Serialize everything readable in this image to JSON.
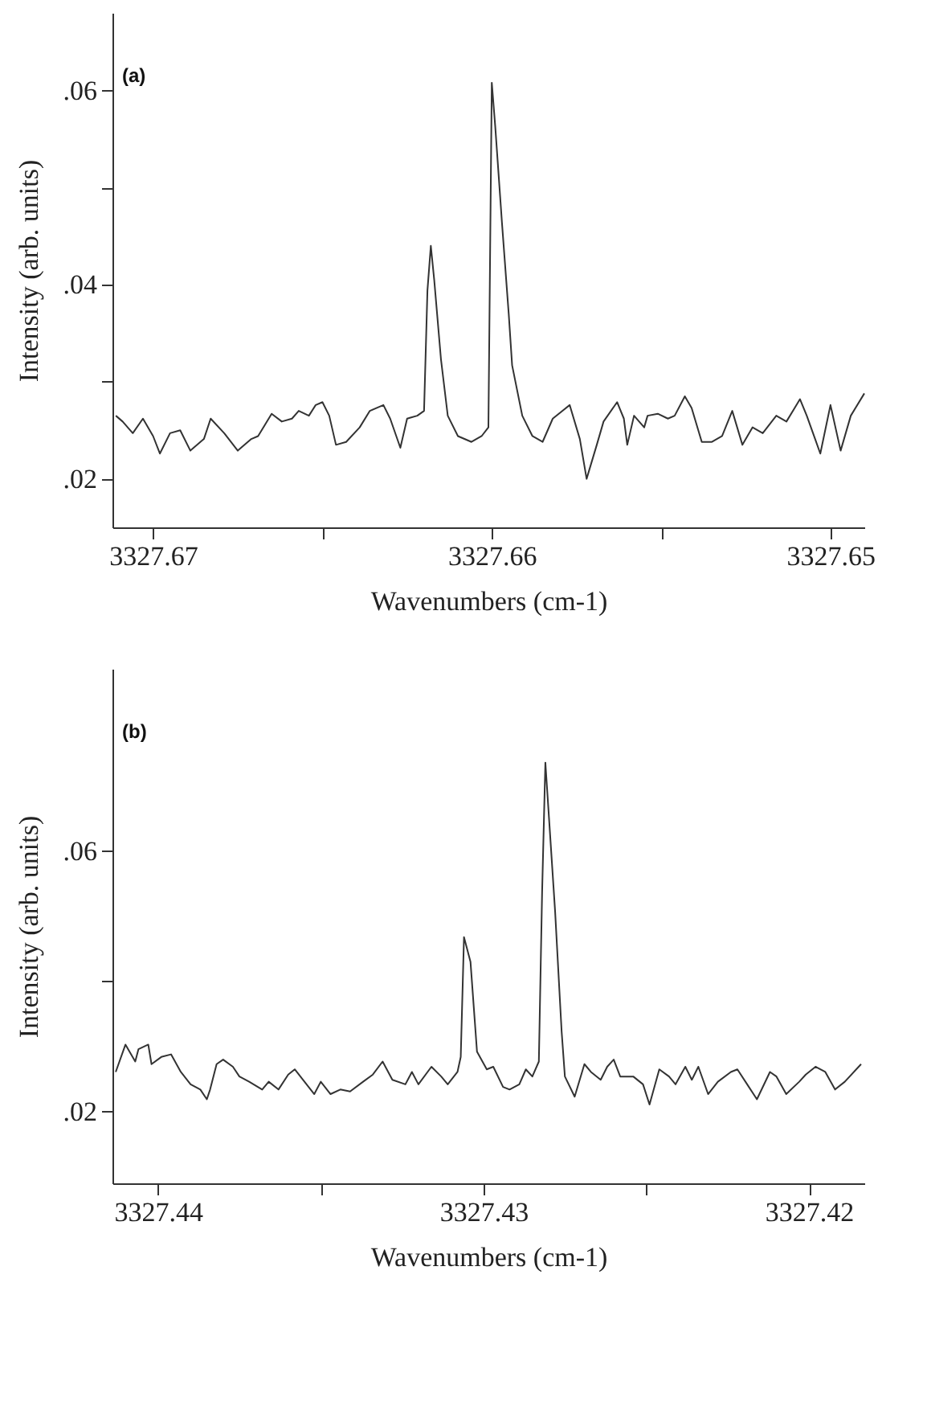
{
  "chart_data": [
    {
      "type": "line",
      "xlabel": "Wavenumbers (cm-1)",
      "ylabel": "Intensity (arb. units)",
      "annotations": [
        "(a)"
      ],
      "grid": false,
      "legend": false,
      "marker": "none",
      "line_style": "solid",
      "xlim": [
        3327.6712,
        3327.649
      ],
      "xticks": [
        3327.67,
        {
          "value": 3327.665,
          "label": null
        },
        3327.66,
        {
          "value": 3327.655,
          "label": null
        },
        3327.65
      ],
      "ylim": [
        0.015,
        0.068
      ],
      "yticks": [
        {
          "value": 0.02,
          "label": ".02"
        },
        {
          "value": 0.03,
          "label": null
        },
        {
          "value": 0.04,
          "label": ".04"
        },
        {
          "value": 0.05,
          "label": null
        },
        {
          "value": 0.06,
          "label": ".06"
        }
      ],
      "series": [
        {
          "color": "#333333",
          "x": [
            3327.6711,
            3327.6709,
            3327.6706,
            3327.6703,
            3327.67,
            3327.6698,
            3327.6695,
            3327.6692,
            3327.6689,
            3327.6685,
            3327.6683,
            3327.6679,
            3327.6675,
            3327.6671,
            3327.6669,
            3327.6665,
            3327.6662,
            3327.6659,
            3327.6657,
            3327.6654,
            3327.6652,
            3327.665,
            3327.6648,
            3327.6646,
            3327.6643,
            3327.6639,
            3327.6636,
            3327.6632,
            3327.663,
            3327.6627,
            3327.6625,
            3327.6622,
            3327.662,
            3327.6619,
            3327.6618,
            3327.6617,
            3327.6615,
            3327.6613,
            3327.661,
            3327.6606,
            3327.6603,
            3327.6601,
            3327.66,
            3327.6599,
            3327.6597,
            3327.6595,
            3327.6594,
            3327.6591,
            3327.6588,
            3327.6585,
            3327.6582,
            3327.6577,
            3327.6574,
            3327.6572,
            3327.6569,
            3327.6567,
            3327.6563,
            3327.6561,
            3327.656,
            3327.6558,
            3327.6555,
            3327.6554,
            3327.6551,
            3327.6548,
            3327.6546,
            3327.6543,
            3327.6541,
            3327.6538,
            3327.6535,
            3327.6532,
            3327.6529,
            3327.6526,
            3327.6523,
            3327.652,
            3327.6516,
            3327.6513,
            3327.6509,
            3327.6507,
            3327.6503,
            3327.65,
            3327.6497,
            3327.6494,
            3327.649
          ],
          "values": [
            0.0265,
            0.0259,
            0.0247,
            0.0262,
            0.0244,
            0.0226,
            0.0247,
            0.025,
            0.0229,
            0.0241,
            0.0262,
            0.0247,
            0.0229,
            0.0241,
            0.0244,
            0.0267,
            0.0259,
            0.0262,
            0.027,
            0.0265,
            0.0276,
            0.0279,
            0.0265,
            0.0235,
            0.0238,
            0.0253,
            0.027,
            0.0276,
            0.0262,
            0.0232,
            0.0262,
            0.0265,
            0.027,
            0.0394,
            0.044,
            0.0405,
            0.0323,
            0.0265,
            0.0244,
            0.0238,
            0.0244,
            0.0253,
            0.0608,
            0.0564,
            0.0464,
            0.037,
            0.0317,
            0.0265,
            0.0244,
            0.0238,
            0.0262,
            0.0276,
            0.0241,
            0.02,
            0.0235,
            0.0259,
            0.0279,
            0.0262,
            0.0235,
            0.0265,
            0.0253,
            0.0265,
            0.0267,
            0.0262,
            0.0265,
            0.0285,
            0.0273,
            0.0238,
            0.0238,
            0.0244,
            0.027,
            0.0235,
            0.0253,
            0.0247,
            0.0265,
            0.0259,
            0.0282,
            0.0265,
            0.0226,
            0.0276,
            0.0229,
            0.0265,
            0.0288
          ]
        }
      ]
    },
    {
      "type": "line",
      "xlabel": "Wavenumbers (cm-1)",
      "ylabel": "Intensity (arb. units)",
      "annotations": [
        "(b)"
      ],
      "grid": false,
      "legend": false,
      "marker": "none",
      "line_style": "solid",
      "xlim": [
        3327.4414,
        3327.4183
      ],
      "xticks": [
        3327.44,
        {
          "value": 3327.435,
          "label": null
        },
        3327.43,
        {
          "value": 3327.425,
          "label": null
        },
        3327.42
      ],
      "ylim": [
        0.009,
        0.088
      ],
      "yticks": [
        {
          "value": 0.02,
          "label": ".02"
        },
        {
          "value": 0.04,
          "label": null
        },
        {
          "value": 0.06,
          "label": ".06"
        }
      ],
      "series": [
        {
          "color": "#333333",
          "x": [
            3327.4413,
            3327.441,
            3327.4407,
            3327.4406,
            3327.4403,
            3327.4402,
            3327.4399,
            3327.4396,
            3327.4393,
            3327.439,
            3327.4387,
            3327.4385,
            3327.4384,
            3327.4382,
            3327.438,
            3327.4377,
            3327.4375,
            3327.4372,
            3327.4368,
            3327.4366,
            3327.4363,
            3327.436,
            3327.4358,
            3327.4355,
            3327.4352,
            3327.435,
            3327.4347,
            3327.4344,
            3327.4341,
            3327.4337,
            3327.4334,
            3327.4331,
            3327.4328,
            3327.4324,
            3327.4322,
            3327.432,
            3327.4316,
            3327.4313,
            3327.4311,
            3327.4308,
            3327.4307,
            3327.4306,
            3327.4304,
            3327.4302,
            3327.4299,
            3327.4297,
            3327.4294,
            3327.4292,
            3327.4289,
            3327.4287,
            3327.4285,
            3327.4283,
            3327.4282,
            3327.4281,
            3327.428,
            3327.4278,
            3327.4276,
            3327.4275,
            3327.4272,
            3327.4269,
            3327.4267,
            3327.4264,
            3327.4262,
            3327.426,
            3327.4258,
            3327.4254,
            3327.4251,
            3327.4249,
            3327.4246,
            3327.4243,
            3327.4241,
            3327.4238,
            3327.4236,
            3327.4234,
            3327.4231,
            3327.4228,
            3327.4224,
            3327.4222,
            3327.4219,
            3327.4216,
            3327.4212,
            3327.421,
            3327.4207,
            3327.4203,
            3327.4201,
            3327.4198,
            3327.4195,
            3327.4192,
            3327.4189,
            3327.4184
          ],
          "values": [
            0.0261,
            0.0303,
            0.0277,
            0.0296,
            0.0303,
            0.0273,
            0.0284,
            0.0288,
            0.0261,
            0.0242,
            0.0234,
            0.0219,
            0.0234,
            0.0273,
            0.028,
            0.0269,
            0.0254,
            0.0246,
            0.0234,
            0.0246,
            0.0234,
            0.0257,
            0.0265,
            0.0246,
            0.0227,
            0.0246,
            0.0227,
            0.0234,
            0.0231,
            0.0246,
            0.0257,
            0.0277,
            0.0249,
            0.0242,
            0.0261,
            0.0242,
            0.0269,
            0.0254,
            0.0242,
            0.0261,
            0.0284,
            0.0468,
            0.043,
            0.0292,
            0.0265,
            0.0269,
            0.0238,
            0.0234,
            0.0242,
            0.0265,
            0.0254,
            0.0277,
            0.0537,
            0.0736,
            0.066,
            0.0507,
            0.0323,
            0.0254,
            0.0223,
            0.0273,
            0.0261,
            0.0249,
            0.0269,
            0.028,
            0.0254,
            0.0254,
            0.0242,
            0.0211,
            0.0265,
            0.0254,
            0.0242,
            0.0269,
            0.0249,
            0.0269,
            0.0227,
            0.0246,
            0.0261,
            0.0265,
            0.0242,
            0.0219,
            0.0261,
            0.0254,
            0.0227,
            0.0246,
            0.0257,
            0.0269,
            0.0261,
            0.0234,
            0.0246,
            0.0273
          ]
        }
      ]
    }
  ]
}
